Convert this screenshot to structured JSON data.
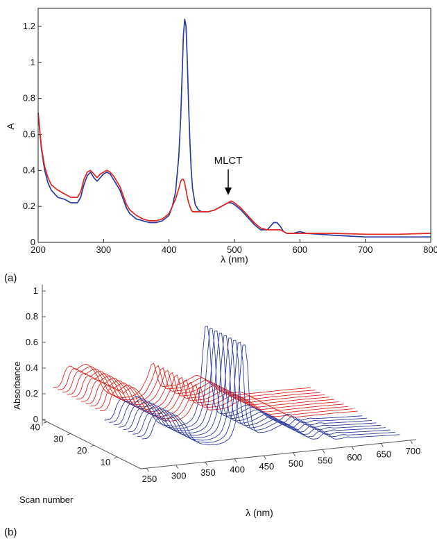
{
  "chart_data": [
    {
      "panel_label": "(a)",
      "type": "line",
      "xlabel": "λ (nm)",
      "ylabel": "A",
      "xlim": [
        200,
        800
      ],
      "ylim": [
        0,
        1.3
      ],
      "xticks": [
        "200",
        "300",
        "400",
        "500",
        "600",
        "700",
        "800"
      ],
      "yticks": [
        "0",
        "0.2",
        "0.4",
        "0.6",
        "0.8",
        "1",
        "1.2"
      ],
      "annotation": {
        "text": "MLCT",
        "x": 495,
        "y": 0.23
      },
      "series": [
        {
          "color": "#2b3aa0",
          "x": [
            200,
            205,
            210,
            215,
            220,
            230,
            240,
            250,
            260,
            265,
            270,
            275,
            280,
            285,
            290,
            295,
            300,
            305,
            310,
            315,
            320,
            325,
            330,
            335,
            340,
            350,
            360,
            370,
            380,
            390,
            400,
            405,
            410,
            415,
            418,
            420,
            422,
            424,
            426,
            428,
            430,
            432,
            434,
            436,
            440,
            445,
            450,
            460,
            470,
            480,
            490,
            495,
            500,
            510,
            520,
            530,
            540,
            550,
            555,
            560,
            565,
            570,
            575,
            580,
            590,
            600,
            610,
            650,
            700,
            750,
            800
          ],
          "y": [
            0.72,
            0.52,
            0.4,
            0.33,
            0.29,
            0.25,
            0.24,
            0.22,
            0.22,
            0.25,
            0.32,
            0.37,
            0.39,
            0.36,
            0.34,
            0.36,
            0.38,
            0.39,
            0.38,
            0.35,
            0.32,
            0.29,
            0.24,
            0.19,
            0.16,
            0.13,
            0.12,
            0.11,
            0.11,
            0.12,
            0.15,
            0.2,
            0.28,
            0.48,
            0.7,
            0.92,
            1.15,
            1.24,
            1.2,
            1.0,
            0.75,
            0.55,
            0.4,
            0.3,
            0.21,
            0.18,
            0.17,
            0.17,
            0.18,
            0.2,
            0.22,
            0.22,
            0.21,
            0.18,
            0.14,
            0.1,
            0.07,
            0.07,
            0.09,
            0.11,
            0.11,
            0.09,
            0.06,
            0.05,
            0.05,
            0.06,
            0.05,
            0.04,
            0.03,
            0.03,
            0.03
          ]
        },
        {
          "color": "#e0251e",
          "x": [
            200,
            205,
            210,
            215,
            220,
            230,
            240,
            250,
            260,
            265,
            270,
            275,
            280,
            285,
            290,
            295,
            300,
            305,
            310,
            315,
            320,
            325,
            330,
            335,
            340,
            350,
            360,
            370,
            380,
            390,
            400,
            405,
            410,
            415,
            418,
            420,
            422,
            424,
            426,
            428,
            430,
            432,
            434,
            436,
            440,
            445,
            450,
            460,
            470,
            480,
            490,
            495,
            500,
            510,
            520,
            530,
            540,
            550,
            555,
            560,
            565,
            570,
            575,
            580,
            590,
            600,
            610,
            650,
            700,
            750,
            800
          ],
          "y": [
            0.72,
            0.53,
            0.42,
            0.36,
            0.32,
            0.29,
            0.27,
            0.25,
            0.25,
            0.28,
            0.35,
            0.39,
            0.4,
            0.38,
            0.36,
            0.38,
            0.39,
            0.4,
            0.39,
            0.37,
            0.34,
            0.31,
            0.26,
            0.21,
            0.18,
            0.15,
            0.13,
            0.12,
            0.12,
            0.13,
            0.16,
            0.2,
            0.24,
            0.3,
            0.34,
            0.35,
            0.35,
            0.33,
            0.29,
            0.25,
            0.22,
            0.2,
            0.18,
            0.17,
            0.17,
            0.17,
            0.17,
            0.17,
            0.18,
            0.2,
            0.22,
            0.23,
            0.22,
            0.19,
            0.15,
            0.11,
            0.08,
            0.07,
            0.07,
            0.07,
            0.07,
            0.07,
            0.06,
            0.05,
            0.05,
            0.05,
            0.05,
            0.05,
            0.045,
            0.045,
            0.05
          ]
        }
      ]
    },
    {
      "panel_label": "(b)",
      "type": "line",
      "projection": "3d-waterfall",
      "xlabel": "λ (nm)",
      "ylabel": "Scan number",
      "zlabel": "Absorbance",
      "xlim": [
        240,
        710
      ],
      "ylim": [
        0,
        42
      ],
      "zlim": [
        -0.05,
        1.05
      ],
      "xticks": [
        "250",
        "300",
        "350",
        "400",
        "450",
        "500",
        "550",
        "600",
        "650",
        "700"
      ],
      "yticks": [
        "10",
        "20",
        "30",
        "40"
      ],
      "zticks": [
        "0",
        "0.2",
        "0.4",
        "0.6",
        "0.8",
        "1"
      ],
      "scans": {
        "first": 1,
        "last": 40,
        "step": 2,
        "red_from": 20
      },
      "red_color": "#e0251e",
      "blue_color": "#2b3aa0"
    }
  ]
}
